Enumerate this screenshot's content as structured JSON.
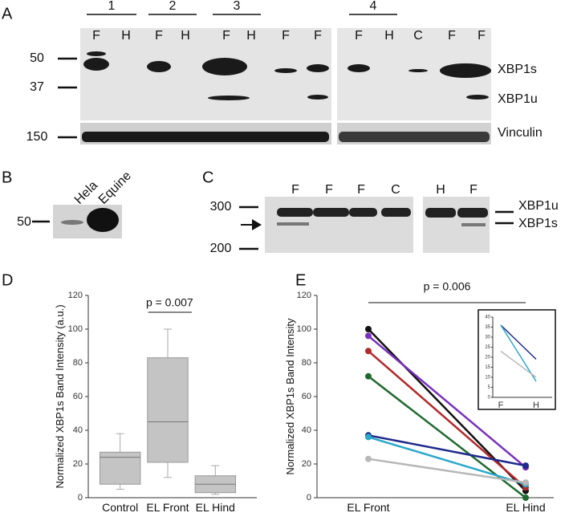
{
  "panel_a": {
    "label": "A",
    "groups": [
      "1",
      "2",
      "3",
      "4"
    ],
    "lanes_left": [
      "F",
      "H",
      "F",
      "H",
      "F",
      "H",
      "F",
      "F"
    ],
    "lanes_right": [
      "F",
      "H",
      "C",
      "F",
      "F"
    ],
    "markers": [
      "50",
      "37",
      "150"
    ],
    "band_labels": [
      "XBP1s",
      "XBP1u",
      "Vinculin"
    ]
  },
  "panel_b": {
    "label": "B",
    "lanes": [
      "Hela",
      "Equine"
    ],
    "marker": "50"
  },
  "panel_c": {
    "label": "C",
    "lanes": [
      "F",
      "F",
      "F",
      "C",
      "H",
      "F"
    ],
    "markers": [
      "300",
      "200"
    ],
    "band_labels": [
      "XBP1u",
      "XBP1s"
    ]
  },
  "panel_d_label": "D",
  "panel_e_label": "E",
  "chart_data": [
    {
      "type": "box",
      "ylabel": "Normalized XBP1s Band Intensity (a.u.)",
      "categories": [
        "Control",
        "EL Front",
        "EL Hind"
      ],
      "boxes": [
        {
          "whislo": 5,
          "q1": 8,
          "med": 24,
          "q3": 27,
          "whishi": 38
        },
        {
          "whislo": 12,
          "q1": 21,
          "med": 45,
          "q3": 83,
          "whishi": 100
        },
        {
          "whislo": 2,
          "q1": 3,
          "med": 8,
          "q3": 13,
          "whishi": 19
        }
      ],
      "color": "#c4c4c4",
      "ylim": [
        0,
        120
      ],
      "yticks": [
        0,
        20,
        40,
        60,
        80,
        100,
        120
      ],
      "annotation": "p = 0.007"
    },
    {
      "type": "line",
      "ylabel": "Normalized XBP1s Band Intensity",
      "categories": [
        "EL Front",
        "EL Hind"
      ],
      "series": [
        {
          "color": "#111111",
          "values": [
            100,
            4
          ]
        },
        {
          "color": "#7a2fbf",
          "values": [
            96,
            18
          ]
        },
        {
          "color": "#b3282a",
          "values": [
            87,
            6
          ]
        },
        {
          "color": "#1e6a2e",
          "values": [
            72,
            0
          ]
        },
        {
          "color": "#1f2a8c",
          "values": [
            37,
            19
          ]
        },
        {
          "color": "#2aa8cc",
          "values": [
            36,
            8
          ]
        },
        {
          "color": "#b8b8b8",
          "values": [
            23,
            9
          ]
        }
      ],
      "ylim": [
        0,
        120
      ],
      "yticks": [
        0,
        20,
        40,
        60,
        80,
        100,
        120
      ],
      "annotation": "p = 0.006"
    },
    {
      "type": "line",
      "categories": [
        "F",
        "H"
      ],
      "series": [
        {
          "color": "#1f2a8c",
          "values": [
            36,
            19
          ]
        },
        {
          "color": "#2aa8cc",
          "values": [
            36,
            8
          ]
        },
        {
          "color": "#b8b8b8",
          "values": [
            23,
            10
          ]
        }
      ],
      "ylim": [
        0,
        40
      ],
      "yticks": [
        0,
        5,
        10,
        15,
        20,
        25,
        30,
        35,
        40
      ]
    }
  ]
}
